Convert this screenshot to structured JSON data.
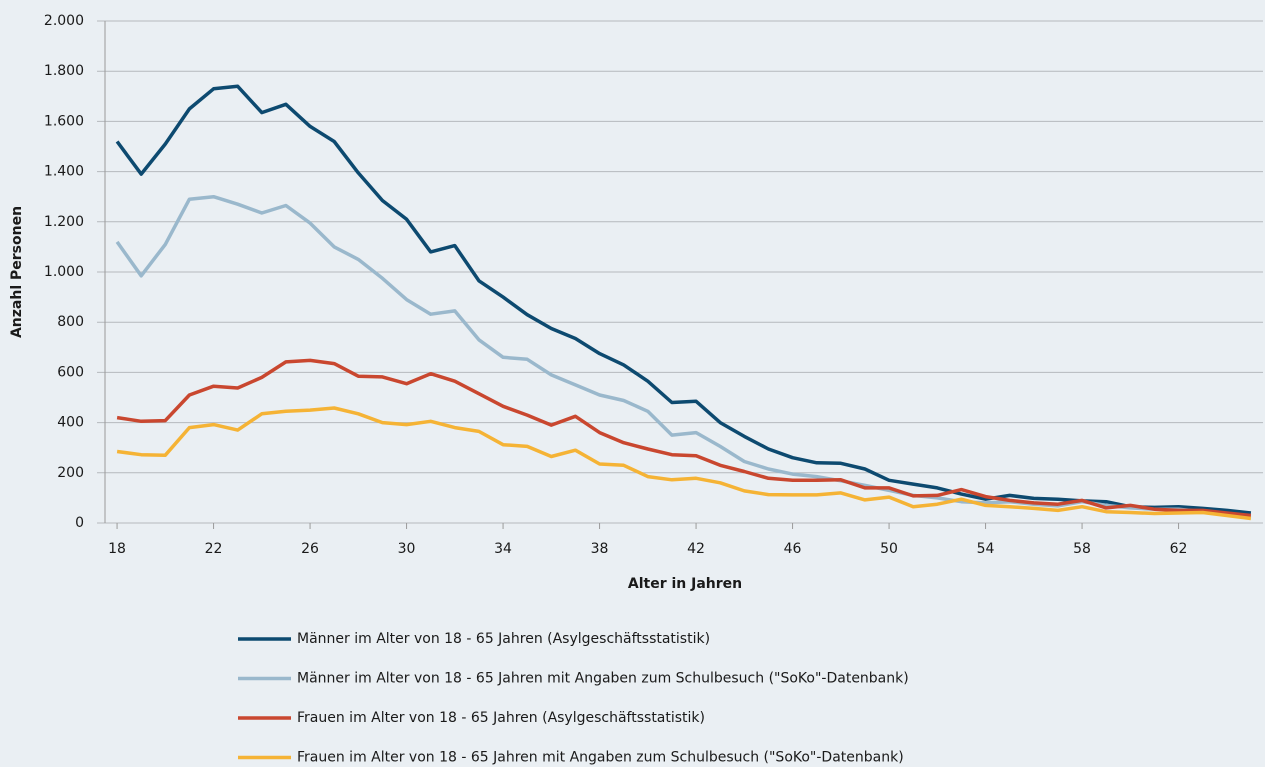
{
  "chart_data": {
    "type": "line",
    "xlabel": "Alter in Jahren",
    "ylabel": "Anzahl Personen",
    "x": [
      18,
      19,
      20,
      21,
      22,
      23,
      24,
      25,
      26,
      27,
      28,
      29,
      30,
      31,
      32,
      33,
      34,
      35,
      36,
      37,
      38,
      39,
      40,
      41,
      42,
      43,
      44,
      45,
      46,
      47,
      48,
      49,
      50,
      51,
      52,
      53,
      54,
      55,
      56,
      57,
      58,
      59,
      60,
      61,
      62,
      63,
      64,
      65
    ],
    "xlim": [
      17.5,
      65.5
    ],
    "xticks": [
      18,
      22,
      26,
      30,
      34,
      38,
      42,
      46,
      50,
      54,
      58,
      62
    ],
    "ylim": [
      0,
      2000
    ],
    "yticks": [
      0,
      200,
      400,
      600,
      800,
      {
        "value": 1000,
        "label": "1.000"
      },
      {
        "value": 1200,
        "label": "1.200"
      },
      {
        "value": 1400,
        "label": "1.400"
      },
      {
        "value": 1600,
        "label": "1.600"
      },
      {
        "value": 1800,
        "label": "1.800"
      },
      {
        "value": 2000,
        "label": "2.000"
      }
    ],
    "grid": true,
    "legend": "bottom",
    "series": [
      {
        "name": "Männer im Alter von 18 - 65 Jahren (Asylgeschäftsstatistik)",
        "color": "#0d4a70",
        "values": [
          1520,
          1390,
          1510,
          1650,
          1730,
          1740,
          1635,
          1668,
          1580,
          1520,
          1395,
          1285,
          1210,
          1080,
          1105,
          965,
          900,
          830,
          775,
          735,
          675,
          630,
          565,
          480,
          485,
          400,
          345,
          295,
          260,
          240,
          238,
          215,
          170,
          155,
          140,
          115,
          95,
          110,
          98,
          95,
          88,
          85,
          65,
          62,
          65,
          58,
          50,
          40
        ]
      },
      {
        "name": "Männer im Alter von 18 - 65 Jahren mit Angaben zum Schulbesuch (\"SoKo\"-Datenbank)",
        "color": "#9ab8cc",
        "values": [
          1120,
          985,
          1110,
          1290,
          1300,
          1270,
          1235,
          1265,
          1195,
          1100,
          1050,
          975,
          890,
          832,
          845,
          730,
          660,
          652,
          590,
          550,
          510,
          488,
          445,
          350,
          360,
          305,
          245,
          215,
          195,
          185,
          168,
          150,
          130,
          110,
          100,
          85,
          80,
          85,
          75,
          68,
          85,
          70,
          60,
          55,
          55,
          45,
          35,
          25
        ]
      },
      {
        "name": "Frauen im Alter von 18 - 65 Jahren (Asylgeschäftsstatistik)",
        "color": "#c9472f",
        "values": [
          420,
          405,
          408,
          510,
          545,
          538,
          580,
          642,
          648,
          635,
          585,
          582,
          555,
          595,
          565,
          515,
          465,
          430,
          390,
          425,
          360,
          320,
          295,
          272,
          268,
          230,
          205,
          178,
          170,
          170,
          172,
          140,
          140,
          108,
          110,
          133,
          105,
          90,
          80,
          75,
          90,
          60,
          70,
          55,
          50,
          50,
          40,
          30
        ]
      },
      {
        "name": "Frauen im Alter von 18 - 65 Jahren mit Angaben zum Schulbesuch (\"SoKo\"-Datenbank)",
        "color": "#f5b335",
        "values": [
          285,
          272,
          270,
          380,
          392,
          370,
          435,
          445,
          450,
          458,
          435,
          400,
          392,
          405,
          380,
          365,
          312,
          305,
          265,
          290,
          235,
          230,
          185,
          172,
          178,
          160,
          128,
          113,
          112,
          112,
          120,
          92,
          103,
          65,
          75,
          95,
          70,
          65,
          58,
          50,
          65,
          45,
          42,
          38,
          40,
          42,
          30,
          18
        ]
      }
    ]
  }
}
